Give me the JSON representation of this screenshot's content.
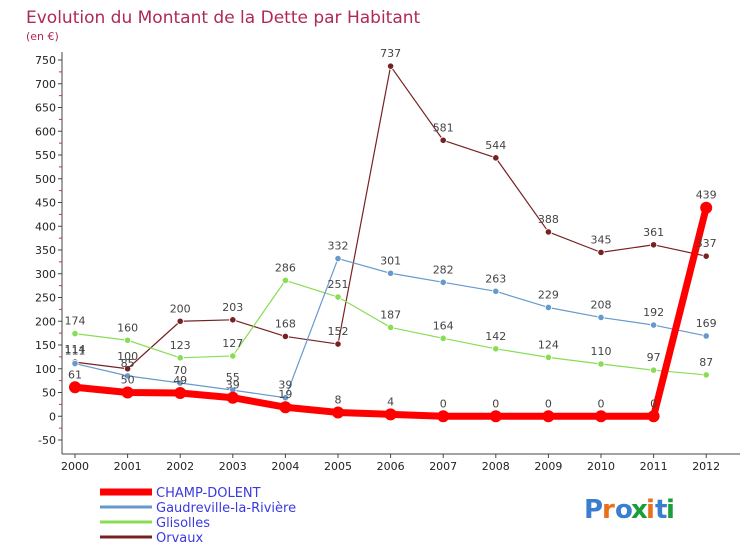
{
  "chart_data": {
    "type": "line",
    "title": "Evolution du Montant de la Dette par Habitant",
    "subtitle": "(en €)",
    "categories": [
      "2000",
      "2001",
      "2002",
      "2003",
      "2004",
      "2005",
      "2006",
      "2007",
      "2008",
      "2009",
      "2010",
      "2011",
      "2012"
    ],
    "y_ticks": [
      -50,
      0,
      50,
      100,
      150,
      200,
      250,
      300,
      350,
      400,
      450,
      500,
      550,
      600,
      650,
      700,
      750
    ],
    "ylim": [
      -50,
      750
    ],
    "grid": false,
    "legend_position": "bottom-left",
    "series": [
      {
        "name": "CHAMP-DOLENT",
        "color": "#ff0000",
        "values": [
          61,
          50,
          49,
          39,
          19,
          8,
          4,
          0,
          0,
          0,
          0,
          0,
          439
        ]
      },
      {
        "name": "Gaudreville-la-Rivière",
        "color": "#6699cc",
        "values": [
          111,
          85,
          70,
          55,
          39,
          332,
          301,
          282,
          263,
          229,
          208,
          192,
          169
        ]
      },
      {
        "name": "Glisolles",
        "color": "#88dd55",
        "values": [
          174,
          160,
          123,
          127,
          286,
          251,
          187,
          164,
          142,
          124,
          110,
          97,
          87
        ]
      },
      {
        "name": "Orvaux",
        "color": "#772222",
        "values": [
          114,
          100,
          200,
          203,
          168,
          152,
          737,
          581,
          544,
          388,
          345,
          361,
          337
        ]
      }
    ],
    "data_labels": {
      "CHAMP-DOLENT": [
        "61",
        "50",
        "49",
        "39",
        "19",
        "8",
        "4",
        "0",
        "0",
        "0",
        "0",
        "0",
        "439"
      ],
      "Gaudreville-la-Rivière": [
        "111",
        "85",
        "70",
        "55",
        "39",
        "332",
        "301",
        "282",
        "263",
        "229",
        "208",
        "192",
        "169"
      ],
      "Glisolles": [
        "174",
        "160",
        "123",
        "127",
        "286",
        "251",
        "187",
        "164",
        "142",
        "124",
        "110",
        "97",
        "87"
      ],
      "Orvaux": [
        "114",
        "100",
        "200",
        "203",
        "168",
        "152",
        "737",
        "581",
        "544",
        "388",
        "345",
        "361",
        "337"
      ]
    }
  },
  "branding": {
    "logo_text": "Proxiti",
    "letter_colors": [
      "#3a7ecf",
      "#e8701a",
      "#3a7ecf",
      "#1a9e3a",
      "#e8701a",
      "#3a7ecf",
      "#1a9e3a"
    ]
  }
}
